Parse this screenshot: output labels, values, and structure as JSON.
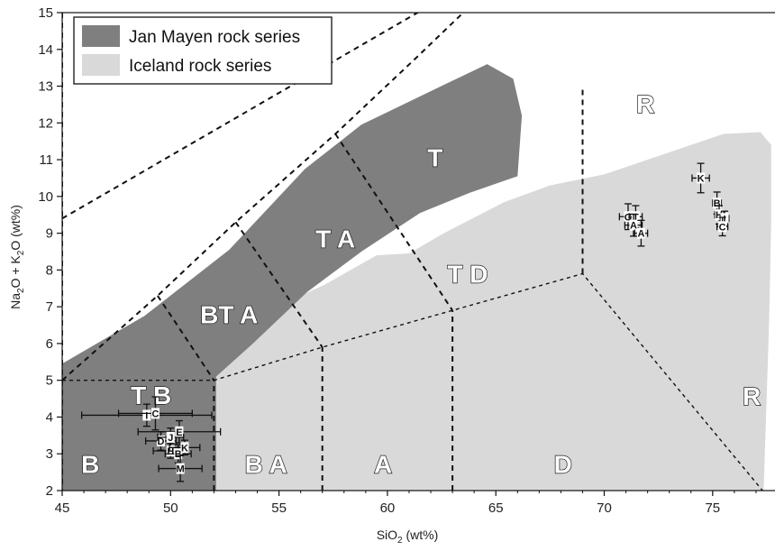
{
  "chart_data": {
    "type": "scatter",
    "xlabel": "SiO2  (wt%)",
    "ylabel": "Na2O + K2O (wt%)",
    "xlim": [
      45,
      78
    ],
    "ylim": [
      2,
      15
    ],
    "xticks": [
      45,
      50,
      55,
      60,
      65,
      70,
      75
    ],
    "yticks": [
      2,
      3,
      4,
      5,
      6,
      7,
      8,
      9,
      10,
      11,
      12,
      13,
      14,
      15
    ],
    "legend": {
      "position": "top-left",
      "entries": [
        {
          "label": "Jan Mayen rock series",
          "color": "#7f7f7f"
        },
        {
          "label": "Iceland rock series",
          "color": "#d9d9d9"
        }
      ]
    },
    "regions": [
      {
        "label": "B",
        "x": 46.3,
        "y": 2.72
      },
      {
        "label": "B A",
        "x": 54.4,
        "y": 2.72
      },
      {
        "label": "A",
        "x": 59.8,
        "y": 2.72
      },
      {
        "label": "D",
        "x": 68.1,
        "y": 2.72
      },
      {
        "label": "T B",
        "x": 49.1,
        "y": 4.6
      },
      {
        "label": "BT A",
        "x": 52.7,
        "y": 6.8
      },
      {
        "label": "T A",
        "x": 57.6,
        "y": 8.85
      },
      {
        "label": "T D",
        "x": 63.7,
        "y": 7.9
      },
      {
        "label": "T",
        "x": 62.2,
        "y": 11.06
      },
      {
        "label": "R",
        "x": 71.9,
        "y": 12.52
      },
      {
        "label": "R",
        "x": 76.8,
        "y": 4.58
      }
    ],
    "samples": [
      {
        "label": "I",
        "x": 48.9,
        "y": 4.05,
        "xerr": 3.0,
        "yerr": 0.3
      },
      {
        "label": "C",
        "x": 49.3,
        "y": 4.1,
        "xerr": 1.7,
        "yerr": 0.45
      },
      {
        "label": "E",
        "x": 50.4,
        "y": 3.6,
        "xerr": 1.9,
        "yerr": 0.3
      },
      {
        "label": "D",
        "x": 49.55,
        "y": 3.35,
        "xerr": 0.7,
        "yerr": 0.25
      },
      {
        "label": "J",
        "x": 50.0,
        "y": 3.45,
        "xerr": 0.6,
        "yerr": 0.25
      },
      {
        "label": "H",
        "x": 50.0,
        "y": 3.08,
        "xerr": 0.8,
        "yerr": 0.2
      },
      {
        "label": "B",
        "x": 50.35,
        "y": 3.0,
        "xerr": 0.6,
        "yerr": 0.25
      },
      {
        "label": "K",
        "x": 50.65,
        "y": 3.17,
        "xerr": 0.7,
        "yerr": 0.2
      },
      {
        "label": "M",
        "x": 50.45,
        "y": 2.6,
        "xerr": 1.0,
        "yerr": 0.35
      },
      {
        "label": "G",
        "x": 71.1,
        "y": 9.45,
        "xerr": 0.4,
        "yerr": 0.35
      },
      {
        "label": "T",
        "x": 71.45,
        "y": 9.45,
        "xerr": 0.3,
        "yerr": 0.3
      },
      {
        "label": "A",
        "x": 71.35,
        "y": 9.22,
        "xerr": 0.4,
        "yerr": 0.3
      },
      {
        "label": "A",
        "x": 71.7,
        "y": 9.0,
        "xerr": 0.3,
        "yerr": 0.35
      },
      {
        "label": "K",
        "x": 74.45,
        "y": 10.5,
        "xerr": 0.4,
        "yerr": 0.4
      },
      {
        "label": "B",
        "x": 75.2,
        "y": 9.82,
        "xerr": 0.2,
        "yerr": 0.3
      },
      {
        "label": "H",
        "x": 75.3,
        "y": 9.5,
        "xerr": 0.2,
        "yerr": 0.25
      },
      {
        "label": "I",
        "x": 75.55,
        "y": 9.4,
        "xerr": 0.2,
        "yerr": 0.2
      },
      {
        "label": "C",
        "x": 75.45,
        "y": 9.18,
        "xerr": 0.25,
        "yerr": 0.25
      }
    ],
    "jan_mayen_field": [
      [
        45,
        2
      ],
      [
        52.1,
        2
      ],
      [
        52.1,
        3.6
      ],
      [
        52.1,
        5.1
      ],
      [
        53.8,
        6.0
      ],
      [
        56.3,
        7.4
      ],
      [
        58.8,
        8.5
      ],
      [
        61.5,
        9.55
      ],
      [
        63.8,
        10.1
      ],
      [
        66,
        10.55
      ],
      [
        66.2,
        12.2
      ],
      [
        65.8,
        13.2
      ],
      [
        64.6,
        13.6
      ],
      [
        62.3,
        12.95
      ],
      [
        58.8,
        11.95
      ],
      [
        56.2,
        10.75
      ],
      [
        52.7,
        8.55
      ],
      [
        48.8,
        6.75
      ],
      [
        46.6,
        6.0
      ],
      [
        45,
        5.45
      ]
    ],
    "iceland_field": [
      [
        48.6,
        2
      ],
      [
        77.35,
        2
      ],
      [
        77.6,
        6.55
      ],
      [
        77.7,
        9.3
      ],
      [
        77.7,
        11.4
      ],
      [
        77.2,
        11.75
      ],
      [
        75.5,
        11.7
      ],
      [
        72.5,
        11.1
      ],
      [
        70,
        10.6
      ],
      [
        67.5,
        10.3
      ],
      [
        65.4,
        9.85
      ],
      [
        62.6,
        9.0
      ],
      [
        61,
        8.45
      ],
      [
        59.5,
        8.4
      ],
      [
        57.1,
        7.6
      ],
      [
        55.8,
        7.25
      ],
      [
        54.5,
        6.95
      ],
      [
        52.5,
        6.4
      ],
      [
        50.9,
        5.3
      ],
      [
        49.3,
        4.35
      ],
      [
        48.8,
        3.7
      ],
      [
        48.5,
        3.0
      ]
    ],
    "boundaries": [
      [
        [
          45,
          5
        ],
        [
          52,
          5
        ],
        [
          57,
          5.9
        ],
        [
          63,
          6.9
        ],
        [
          69,
          7.9
        ],
        [
          77.3,
          2
        ]
      ],
      [
        [
          52,
          2
        ],
        [
          52,
          5
        ]
      ],
      [
        [
          57,
          2
        ],
        [
          57,
          5.9
        ]
      ],
      [
        [
          63,
          2
        ],
        [
          63,
          6.9
        ]
      ],
      [
        [
          69,
          7.9
        ],
        [
          69,
          12.9
        ]
      ],
      [
        [
          45,
          5
        ],
        [
          49.4,
          7.3
        ],
        [
          53,
          9.3
        ],
        [
          57.6,
          11.7
        ],
        [
          61.2,
          13.7
        ],
        [
          63.5,
          15
        ]
      ],
      [
        [
          49.4,
          7.3
        ],
        [
          52,
          5
        ]
      ],
      [
        [
          53,
          9.3
        ],
        [
          57,
          5.9
        ]
      ],
      [
        [
          57.6,
          11.7
        ],
        [
          63,
          6.9
        ]
      ],
      [
        [
          45,
          9.4
        ],
        [
          69,
          17.6
        ]
      ],
      [
        [
          45,
          1.9
        ],
        [
          45,
          15
        ]
      ]
    ]
  }
}
